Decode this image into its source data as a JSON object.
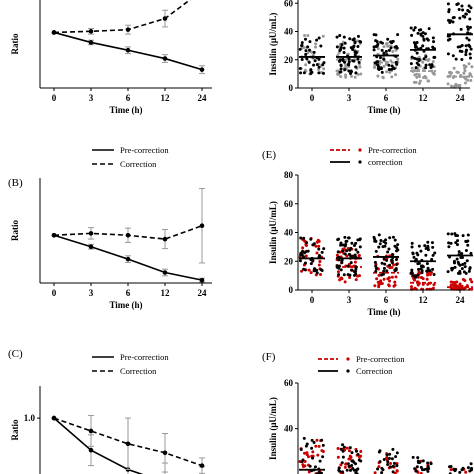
{
  "chart_data": [
    {
      "panel": "A",
      "type": "line",
      "panel_label": "",
      "x": [
        0,
        3,
        6,
        12,
        24
      ],
      "xlabel": "Time (h)",
      "ylabel": "Ratio",
      "ylim": [
        0,
        1.8
      ],
      "yticks": [],
      "grid": false,
      "legend": null,
      "series": [
        {
          "style": "dashed",
          "values": [
            1.0,
            1.02,
            1.05,
            1.25,
            1.75
          ],
          "err": [
            0,
            0.05,
            0.08,
            0.15,
            0.12
          ]
        },
        {
          "style": "solid",
          "values": [
            1.0,
            0.82,
            0.68,
            0.53,
            0.33
          ],
          "err": [
            0,
            0.04,
            0.06,
            0.07,
            0.07
          ]
        }
      ]
    },
    {
      "panel": "B",
      "type": "line",
      "panel_label": "(B)",
      "x": [
        0,
        3,
        6,
        12,
        24
      ],
      "xlabel": "Time (h)",
      "ylabel": "Ratio",
      "ylim": [
        0,
        2.2
      ],
      "yticks": [],
      "grid": false,
      "legend": "top",
      "series": [
        {
          "name": "Pre-correction",
          "style": "solid",
          "values": [
            1.0,
            0.76,
            0.5,
            0.22,
            0.06
          ],
          "err": [
            0,
            0.05,
            0.07,
            0.07,
            0.04
          ]
        },
        {
          "name": "Correction",
          "style": "dashed",
          "values": [
            1.0,
            1.04,
            1.0,
            0.92,
            1.2
          ],
          "err": [
            0,
            0.12,
            0.15,
            0.2,
            0.78
          ]
        }
      ]
    },
    {
      "panel": "C",
      "type": "line",
      "panel_label": "(C)",
      "x": [
        0,
        3,
        6,
        12,
        24
      ],
      "xlabel": "",
      "ylabel": "Ratio",
      "ylim": [
        0.3,
        1.25
      ],
      "yticks": [
        "1.0"
      ],
      "grid": false,
      "legend": "top",
      "series": [
        {
          "name": "Pre-correction",
          "style": "solid",
          "values": [
            1.0,
            0.75,
            0.6,
            0.5,
            0.47
          ],
          "err": [
            0,
            0.12,
            0.2,
            0.15,
            0.15
          ]
        },
        {
          "name": "Correction",
          "style": "dashed",
          "values": [
            1.0,
            0.9,
            0.8,
            0.73,
            0.63
          ],
          "err": [
            0,
            0.12,
            0.2,
            0.15,
            0.06
          ]
        }
      ]
    },
    {
      "panel": "D",
      "type": "scatter",
      "panel_label": "",
      "categories": [
        "0",
        "3",
        "6",
        "12",
        "24"
      ],
      "xlabel": "Time (h)",
      "ylabel": "Insulin (μU/mL)",
      "ylim": [
        0,
        80
      ],
      "yticks": [
        "0",
        "20",
        "40",
        "60"
      ],
      "grid": false,
      "legend": null,
      "series": [
        {
          "name": "Pre-correction",
          "color": "#999999",
          "mean": [
            22,
            20,
            18,
            12,
            8
          ],
          "n": [
            35,
            45,
            40,
            40,
            40
          ],
          "spread": [
            15,
            14,
            13,
            11,
            9
          ]
        },
        {
          "name": "Correction",
          "color": "#000000",
          "mean": [
            22,
            22,
            23,
            27,
            38
          ],
          "n": [
            35,
            55,
            50,
            55,
            55
          ],
          "spread": [
            13,
            14,
            14,
            15,
            20
          ]
        }
      ]
    },
    {
      "panel": "E",
      "type": "scatter",
      "panel_label": "(E)",
      "categories": [
        "0",
        "3",
        "6",
        "12",
        "24"
      ],
      "xlabel": "Time (h)",
      "ylabel": "Insulin (μU/mL)",
      "ylim": [
        0,
        80
      ],
      "yticks": [
        "0",
        "20",
        "40",
        "60",
        "80"
      ],
      "grid": false,
      "legend": "top",
      "series": [
        {
          "name": "Pre-correction",
          "color": "#cc0000",
          "mean": [
            22,
            16,
            12,
            5,
            2
          ],
          "n": [
            35,
            45,
            40,
            40,
            40
          ],
          "spread": [
            13,
            12,
            11,
            7,
            5
          ]
        },
        {
          "name": "correction",
          "color": "#000000",
          "mean": [
            22,
            22,
            23,
            20,
            24
          ],
          "n": [
            35,
            55,
            50,
            50,
            50
          ],
          "spread": [
            13,
            14,
            14,
            13,
            14
          ]
        }
      ]
    },
    {
      "panel": "F",
      "type": "scatter",
      "panel_label": "(F)",
      "categories": [
        "0",
        "3",
        "6",
        "12",
        "24"
      ],
      "xlabel": "",
      "ylabel": "Insulin (μU/mL)",
      "ylim": [
        0,
        60
      ],
      "yticks": [
        "20",
        "40",
        "60"
      ],
      "grid": false,
      "legend": "top",
      "series": [
        {
          "name": "Pre-correction",
          "color": "#cc0000",
          "mean": [
            22,
            19,
            17,
            15,
            13
          ],
          "n": [
            35,
            45,
            40,
            40,
            40
          ],
          "spread": [
            12,
            12,
            11,
            10,
            9
          ]
        },
        {
          "name": "Correction",
          "color": "#000000",
          "mean": [
            22,
            20,
            18,
            16,
            14
          ],
          "n": [
            35,
            55,
            50,
            50,
            50
          ],
          "spread": [
            13,
            13,
            12,
            11,
            10
          ]
        }
      ]
    }
  ]
}
